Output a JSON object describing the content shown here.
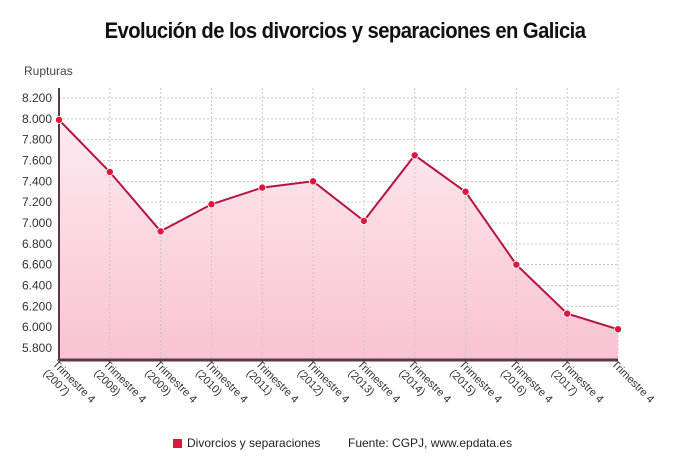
{
  "title": "Evolución de los divorcios y separaciones en Galicia",
  "legend": {
    "label": "Divorcios y separaciones",
    "color": "#e0143c"
  },
  "source": "Fuente: CGPJ, www.epdata.es",
  "colors": {
    "line": "#b5143e",
    "marker": "#e0143c",
    "fill_top": "#fdeaf0",
    "fill_bottom": "#f9c2d1",
    "axis": "#5a3a44",
    "grid": "#c8c8c8"
  },
  "chart_data": {
    "type": "area",
    "title": "Evolución de los divorcios y separaciones en Galicia",
    "xlabel": "",
    "ylabel": "Rupturas",
    "categories": [
      "Trimestre 4 (2007)",
      "Trimestre 4 (2008)",
      "Trimestre 4 (2009)",
      "Trimestre 4 (2010)",
      "Trimestre 4 (2011)",
      "Trimestre 4 (2012)",
      "Trimestre 4 (2013)",
      "Trimestre 4 (2014)",
      "Trimestre 4 (2015)",
      "Trimestre 4 (2016)",
      "Trimestre 4 (2017)",
      "Trimestre 4 (2018)"
    ],
    "series": [
      {
        "name": "Divorcios y separaciones",
        "values": [
          7990,
          7490,
          6920,
          7180,
          7340,
          7400,
          7020,
          7650,
          7300,
          6600,
          6130,
          5980
        ]
      }
    ],
    "yticks": [
      5800,
      6000,
      6200,
      6400,
      6600,
      6800,
      7000,
      7200,
      7400,
      7600,
      7800,
      8000,
      8200
    ],
    "ytick_labels": [
      "5.800",
      "6.000",
      "6.200",
      "6.400",
      "6.600",
      "6.800",
      "7.000",
      "7.200",
      "7.400",
      "7.600",
      "7.800",
      "8.000",
      "8.200"
    ],
    "ylim": [
      5700,
      8300
    ],
    "grid": true,
    "legend_position": "bottom"
  }
}
